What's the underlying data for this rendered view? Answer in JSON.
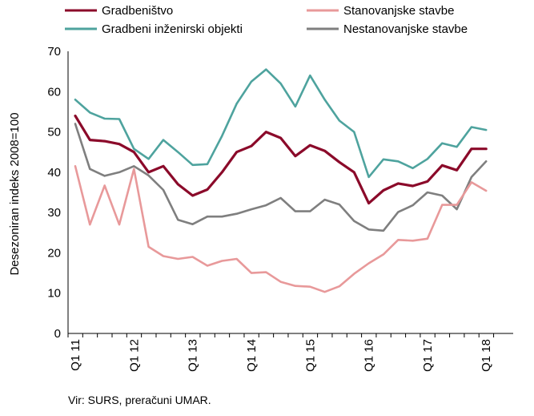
{
  "chart_data": {
    "type": "line",
    "ylabel": "Desezoniran indeks 2008=100",
    "ylim": [
      0,
      70
    ],
    "yticks": [
      0,
      10,
      20,
      30,
      40,
      50,
      60,
      70
    ],
    "x": [
      "Q1 11",
      "Q2 11",
      "Q3 11",
      "Q4 11",
      "Q1 12",
      "Q2 12",
      "Q3 12",
      "Q4 12",
      "Q1 13",
      "Q2 13",
      "Q3 13",
      "Q4 13",
      "Q1 14",
      "Q2 14",
      "Q3 14",
      "Q4 14",
      "Q1 15",
      "Q2 15",
      "Q3 15",
      "Q4 15",
      "Q1 16",
      "Q2 16",
      "Q3 16",
      "Q4 16",
      "Q1 17",
      "Q2 17",
      "Q3 17",
      "Q4 17",
      "Q1 18"
    ],
    "xtick_labels": [
      "Q1 11",
      "Q1 12",
      "Q1 13",
      "Q1 14",
      "Q1 15",
      "Q1 16",
      "Q1 17",
      "Q1 18"
    ],
    "grid": false,
    "legend": "top",
    "series": [
      {
        "name": "Gradbeništvo",
        "color": "#8b0a2a",
        "values": [
          54,
          48,
          47.7,
          47,
          45,
          40,
          41.5,
          37,
          34.2,
          35.7,
          40,
          45,
          46.5,
          50,
          48.5,
          44,
          46.7,
          45.3,
          42.5,
          40,
          32.3,
          35.5,
          37.2,
          36.6,
          37.7,
          41.7,
          40.5,
          45.8,
          45.8
        ]
      },
      {
        "name": "Stanovanjske stavbe",
        "color": "#e8999a",
        "values": [
          41.5,
          27,
          36.7,
          27,
          40.8,
          21.5,
          19.2,
          18.5,
          19,
          16.8,
          18,
          18.5,
          15,
          15.2,
          12.8,
          11.8,
          11.6,
          10.3,
          11.7,
          14.8,
          17.4,
          19.6,
          23.2,
          23,
          23.5,
          31.9,
          31.9,
          37.5,
          35.4
        ]
      },
      {
        "name": "Gradbeni inženirski objekti",
        "color": "#4ea39e",
        "values": [
          58,
          54.8,
          53.3,
          53.2,
          45.8,
          43.3,
          48,
          45,
          41.8,
          42,
          49,
          57,
          62.5,
          65.5,
          62,
          56.3,
          64,
          58,
          52.8,
          50,
          38.8,
          43.2,
          42.7,
          41,
          43.3,
          47.2,
          46.3,
          51.2,
          50.5
        ]
      },
      {
        "name": "Nestanovanjske stavbe",
        "color": "#7f7f7f",
        "values": [
          52,
          40.8,
          39.1,
          40,
          41.5,
          39.2,
          35.6,
          28.2,
          27.1,
          29,
          29,
          29.7,
          30.8,
          31.8,
          33.6,
          30.3,
          30.3,
          33.2,
          32,
          27.9,
          25.8,
          25.5,
          30.1,
          31.8,
          35,
          34.2,
          30.8,
          38.8,
          42.7
        ]
      }
    ]
  },
  "source": "Vir: SURS, preračuni UMAR."
}
